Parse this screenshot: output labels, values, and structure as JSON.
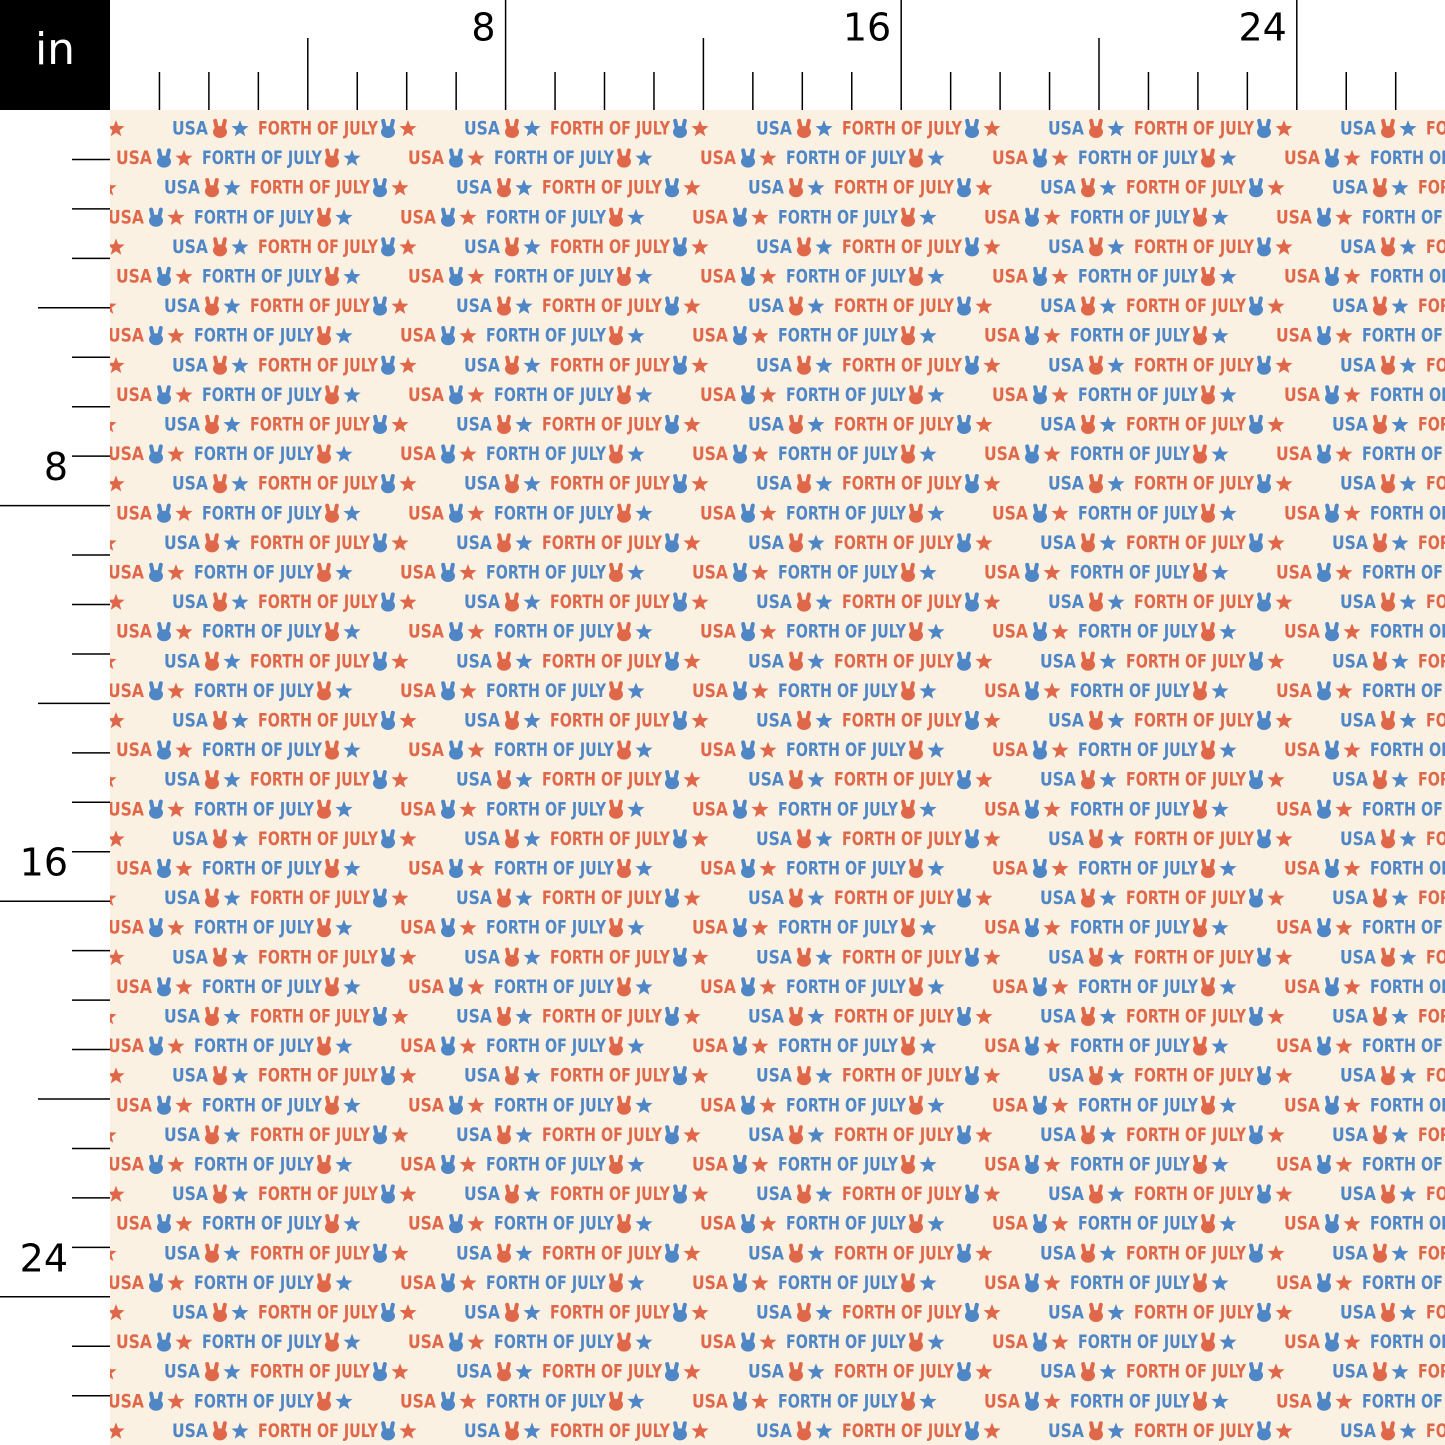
{
  "ruler": {
    "unit": "in",
    "top_labels": [
      8,
      16,
      24
    ],
    "left_labels": [
      8,
      16,
      24
    ]
  },
  "pattern": {
    "words": [
      "USA",
      "FORTH OF JULY"
    ]
  }
}
